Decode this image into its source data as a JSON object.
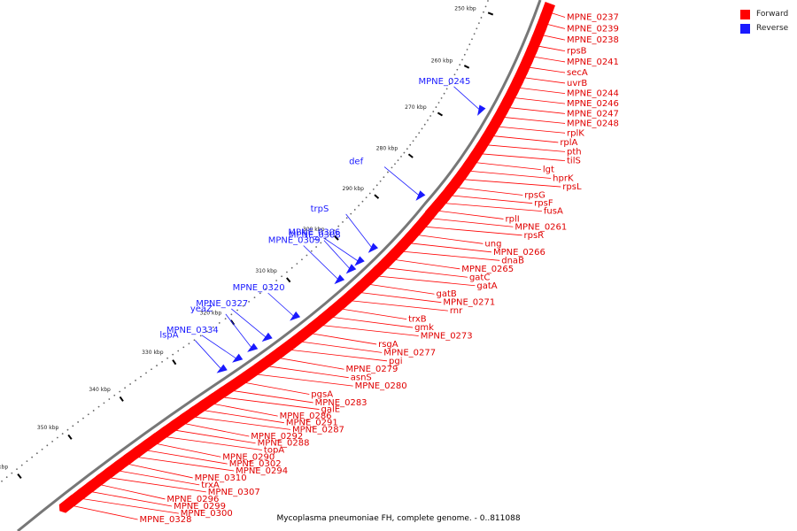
{
  "caption": "Mycoplasma pneumoniae FH, complete genome. - 0..811088",
  "legend": {
    "forward_label": "Forward",
    "reverse_label": "Reverse",
    "forward_color": "#ff0000",
    "reverse_color": "#1a1aff"
  },
  "ticks": [
    "250 kbp",
    "260 kbp",
    "270 kbp",
    "280 kbp",
    "290 kbp",
    "300 kbp",
    "310 kbp",
    "320 kbp",
    "330 kbp",
    "340 kbp",
    "350 kbp",
    "360 kbp"
  ],
  "forward_genes": [
    "MPNE_0237",
    "MPNE_0239",
    "MPNE_0238",
    "rpsB",
    "MPNE_0241",
    "secA",
    "uvrB",
    "MPNE_0244",
    "MPNE_0246",
    "MPNE_0247",
    "MPNE_0248",
    "rplK",
    "rplA",
    "pth",
    "tilS",
    "lgt",
    "hprK",
    "rpsL",
    "rpsG",
    "rpsF",
    "fusA",
    "rplI",
    "MPNE_0261",
    "rpsR",
    "ung",
    "MPNE_0266",
    "dnaB",
    "MPNE_0265",
    "gatC",
    "gatA",
    "gatB",
    "MPNE_0271",
    "rnr",
    "trxB",
    "gmk",
    "MPNE_0273",
    "rsgA",
    "MPNE_0277",
    "pgi",
    "MPNE_0279",
    "asnS",
    "MPNE_0280",
    "pgsA",
    "MPNE_0283",
    "galE",
    "MPNE_0286",
    "MPNE_0291",
    "MPNE_0287",
    "MPNE_0292",
    "MPNE_0288",
    "topA",
    "MPNE_0290",
    "MPNE_0302",
    "MPNE_0294",
    "MPNE_0310",
    "trxA",
    "MPNE_0307",
    "MPNE_0296",
    "MPNE_0299",
    "MPNE_0300",
    "MPNE_0328"
  ],
  "reverse_genes": [
    "MPNE_0245",
    "def",
    "trpS",
    "MPNE_0306",
    "MPNE_0308",
    "MPNE_0309",
    "MPNE_0320",
    "MPNE_0327",
    "yeaZ",
    "MPNE_0334",
    "lspA"
  ]
}
